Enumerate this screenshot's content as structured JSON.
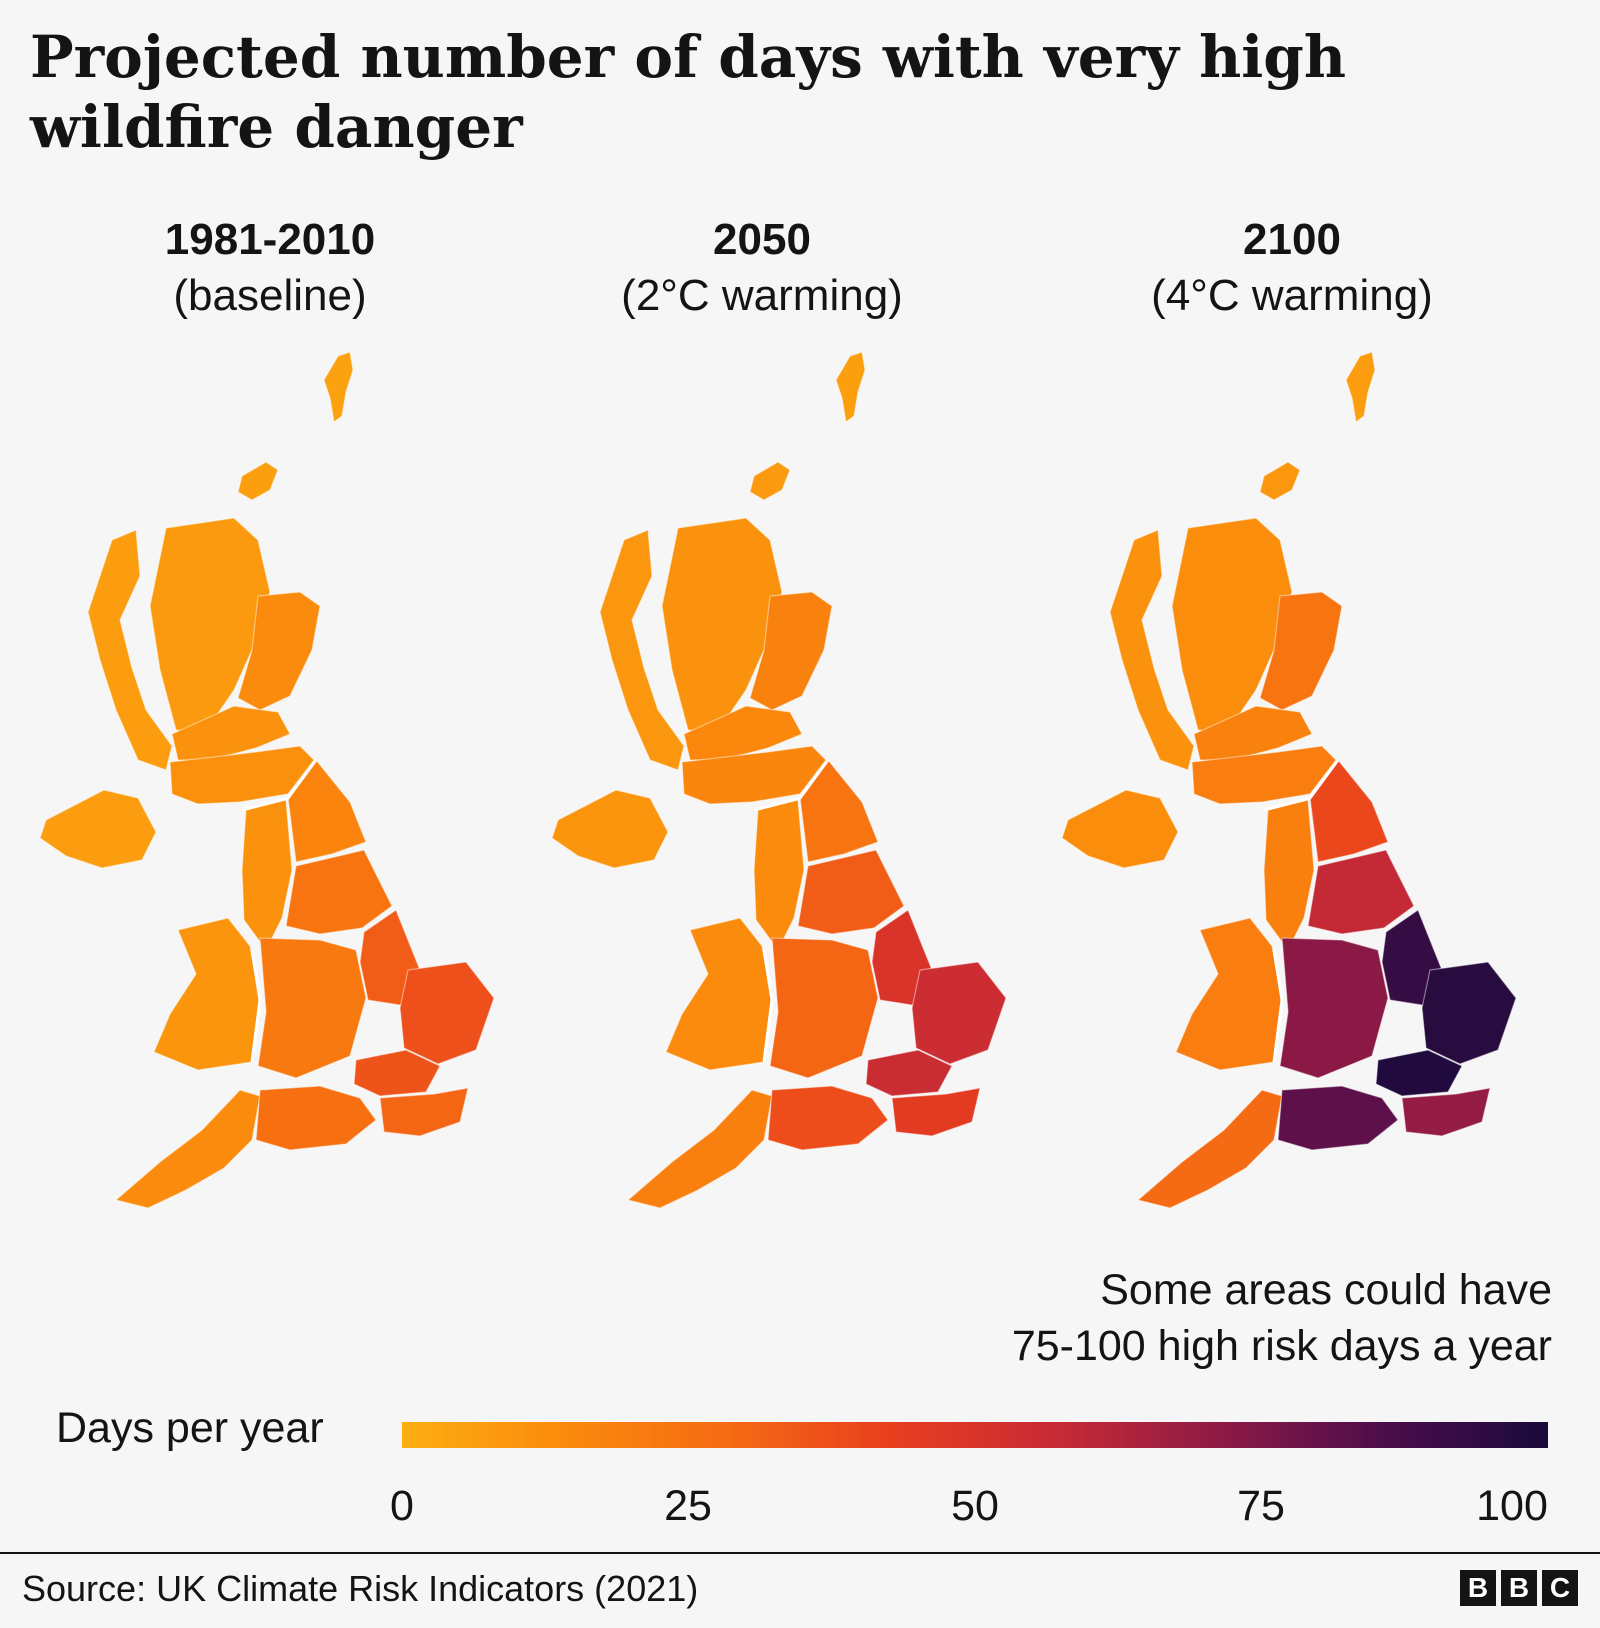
{
  "title": "Projected number of days with very high wildfire danger",
  "panels": [
    {
      "period": "1981-2010",
      "subtitle": "(baseline)",
      "regions": {
        "shetland": 5,
        "orkney": 6,
        "highlands": 8,
        "west_coast": 7,
        "aberdeenshire": 14,
        "central_scotland": 11,
        "southern_scotland": 12,
        "northern_ireland": 7,
        "north_west_england": 11,
        "north_east_england": 17,
        "yorkshire": 24,
        "wales": 10,
        "midlands": 22,
        "lincolnshire_east": 33,
        "east_anglia": 37,
        "london": 36,
        "south_west": 14,
        "south_coast": 26,
        "kent": 30
      }
    },
    {
      "period": "2050",
      "subtitle": "(2°C warming)",
      "regions": {
        "shetland": 6,
        "orkney": 8,
        "highlands": 11,
        "west_coast": 9,
        "aberdeenshire": 18,
        "central_scotland": 15,
        "southern_scotland": 16,
        "northern_ireland": 10,
        "north_west_england": 14,
        "north_east_england": 24,
        "yorkshire": 33,
        "wales": 14,
        "midlands": 30,
        "lincolnshire_east": 50,
        "east_anglia": 55,
        "london": 56,
        "south_west": 19,
        "south_coast": 38,
        "kent": 45
      }
    },
    {
      "period": "2100",
      "subtitle": "(4°C warming)",
      "regions": {
        "shetland": 7,
        "orkney": 9,
        "highlands": 13,
        "west_coast": 11,
        "aberdeenshire": 24,
        "central_scotland": 18,
        "southern_scotland": 20,
        "northern_ireland": 13,
        "north_west_england": 19,
        "north_east_england": 40,
        "yorkshire": 58,
        "wales": 20,
        "midlands": 72,
        "lincolnshire_east": 92,
        "east_anglia": 96,
        "london": 98,
        "south_west": 28,
        "south_coast": 82,
        "kent": 70
      }
    }
  ],
  "annotation": {
    "line1": "Some areas could have",
    "line2": "75-100 high risk days a year"
  },
  "legend": {
    "label": "Days per year",
    "ticks": [
      "0",
      "25",
      "50",
      "75",
      "100"
    ],
    "range": [
      0,
      100
    ],
    "colors": [
      "#fcae12",
      "#fb8a0c",
      "#f56a13",
      "#e83e1f",
      "#c72a35",
      "#8e1a46",
      "#4c0d4b",
      "#1a0a3b"
    ]
  },
  "source": "Source: UK Climate Risk Indicators (2021)",
  "logo": [
    "B",
    "B",
    "C"
  ]
}
